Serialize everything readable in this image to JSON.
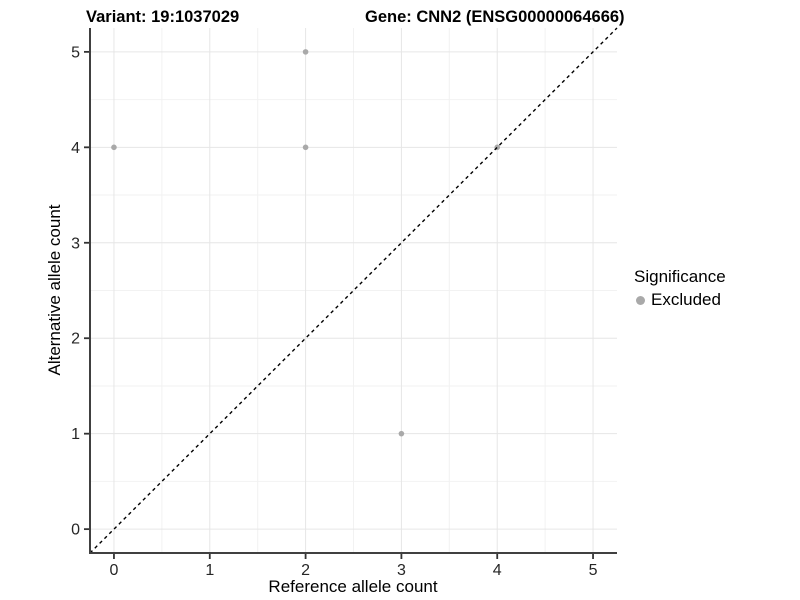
{
  "chart_data": {
    "type": "scatter",
    "title_left": "Variant: 19:1037029",
    "title_right": "Gene: CNN2 (ENSG00000064666)",
    "xlabel": "Reference allele count",
    "ylabel": "Alternative allele count",
    "xlim": [
      -0.25,
      5.25
    ],
    "ylim": [
      -0.25,
      5.25
    ],
    "x_ticks": [
      0,
      1,
      2,
      3,
      4,
      5
    ],
    "y_ticks": [
      0,
      1,
      2,
      3,
      4,
      5
    ],
    "x_minor_ticks": [
      0.5,
      1.5,
      2.5,
      3.5,
      4.5
    ],
    "y_minor_ticks": [
      0.5,
      1.5,
      2.5,
      3.5,
      4.5
    ],
    "grid": "major+minor",
    "reference_line": {
      "type": "identity",
      "style": "dashed",
      "color": "#000000"
    },
    "series": [
      {
        "name": "Excluded",
        "color": "#a9a9a9",
        "points": [
          [
            0,
            4
          ],
          [
            2,
            4
          ],
          [
            2,
            5
          ],
          [
            3,
            1
          ],
          [
            4,
            4
          ]
        ]
      }
    ],
    "legend": {
      "title": "Significance",
      "position": "right",
      "entries": [
        {
          "label": "Excluded",
          "color": "#a9a9a9"
        }
      ]
    },
    "colors": {
      "axis_line": "#404040",
      "tick_mark": "#333333",
      "tick_text": "#262626",
      "grid_major": "#e6e6e6",
      "grid_minor": "#f2f2f2",
      "panel_background": "#ffffff"
    }
  }
}
